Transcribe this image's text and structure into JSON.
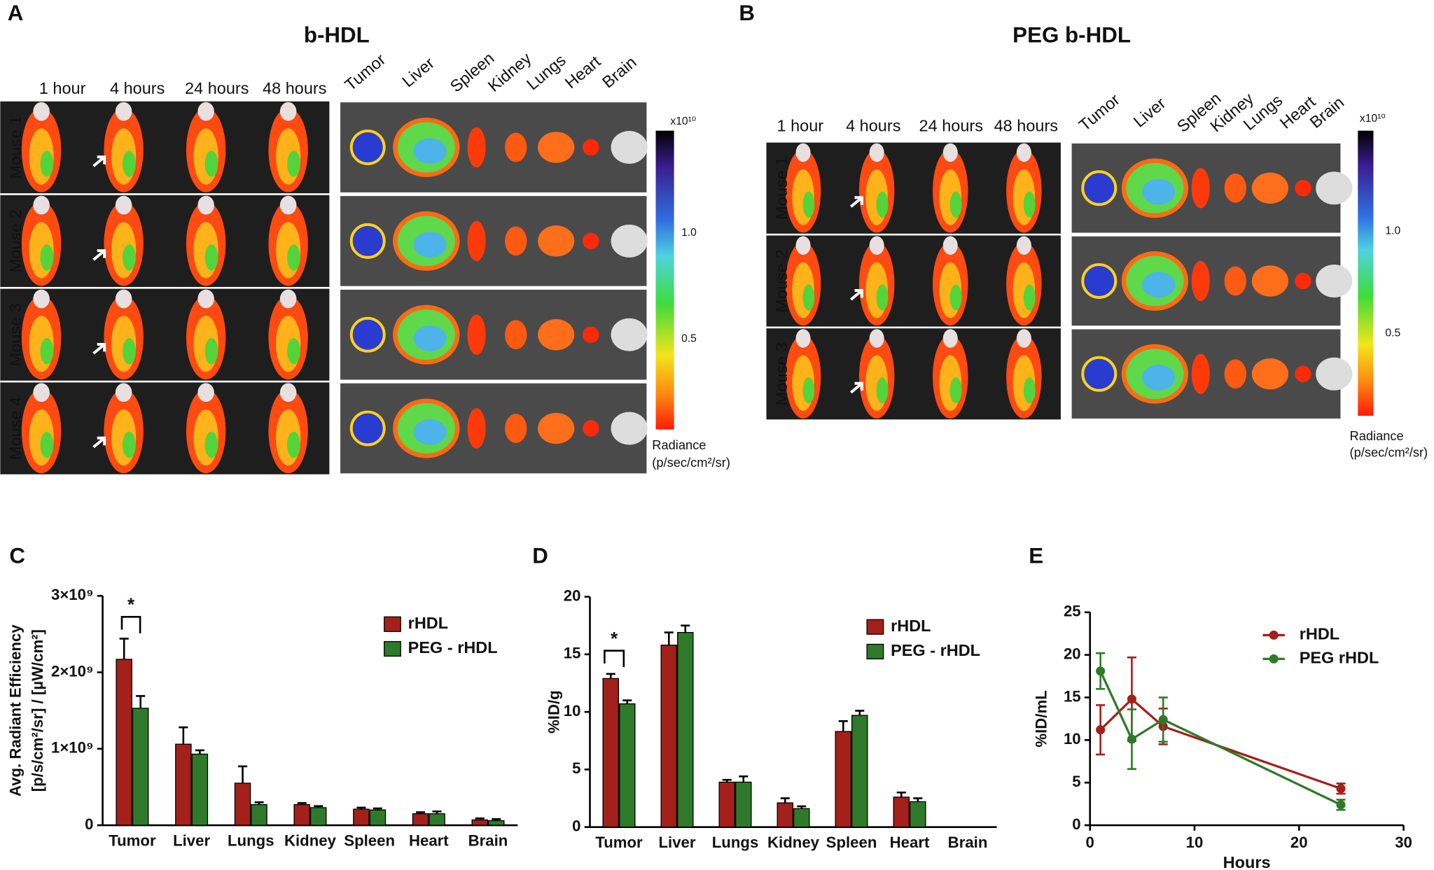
{
  "panels": [
    {
      "label": "A",
      "title": "b-HDL",
      "times": [
        "1 hour",
        "4 hours",
        "24 hours",
        "48 hours"
      ],
      "mice": [
        "Mouse 1",
        "Mouse 2",
        "Mouse 3",
        "Mouse 4"
      ],
      "organs": [
        "Tumor",
        "Liver",
        "Spleen",
        "Kidney",
        "Lungs",
        "Heart",
        "Brain"
      ],
      "colorbar": {
        "exponent": "x10¹⁰",
        "scale_labels": [
          "1.0",
          "0.5"
        ],
        "title": "Radiance",
        "unit": "(p/sec/cm²/sr)"
      }
    },
    {
      "label": "B",
      "title": "PEG b-HDL",
      "times": [
        "1 hour",
        "4 hours",
        "24 hours",
        "48 hours"
      ],
      "mice": [
        "Mouse 1",
        "Mouse 2",
        "Mouse 3"
      ],
      "organs": [
        "Tumor",
        "Liver",
        "Spleen",
        "Kidney",
        "Lungs",
        "Heart",
        "Brain"
      ],
      "colorbar": {
        "exponent": "x10¹⁰",
        "scale_labels": [
          "1.0",
          "0.5"
        ],
        "title": "Radiance",
        "unit": "(p/sec/cm²/sr)"
      }
    }
  ],
  "chart_data": [
    {
      "type": "bar",
      "panel_label": "C",
      "ylabel": [
        "Avg. Radiant Efficiency",
        "[p/s/cm²/sr] / [µW/cm²]"
      ],
      "categories": [
        "Tumor",
        "Liver",
        "Lungs",
        "Kidney",
        "Spleen",
        "Heart",
        "Brain"
      ],
      "series": [
        {
          "name": "rHDL",
          "color": "#a3201b",
          "values": [
            2170000000,
            1060000000,
            550000000,
            270000000,
            210000000,
            150000000,
            70000000
          ],
          "errors": [
            270000000,
            220000000,
            220000000,
            20000000,
            20000000,
            20000000,
            20000000
          ]
        },
        {
          "name": "PEG - rHDL",
          "color": "#2f7a2a",
          "values": [
            1530000000,
            930000000,
            270000000,
            230000000,
            200000000,
            150000000,
            60000000
          ],
          "errors": [
            160000000,
            50000000,
            30000000,
            20000000,
            20000000,
            30000000,
            20000000
          ]
        }
      ],
      "ylim": [
        0,
        3000000000
      ],
      "yticks": [
        0,
        {
          "value": 1000000000,
          "label": "1×10⁹"
        },
        {
          "value": 2000000000,
          "label": "2×10⁹"
        },
        {
          "value": 3000000000,
          "label": "3×10⁹"
        }
      ],
      "annotation": "*",
      "legend": "upper right"
    },
    {
      "type": "bar",
      "panel_label": "D",
      "ylabel": [
        "%ID/g"
      ],
      "categories": [
        "Tumor",
        "Liver",
        "Lungs",
        "Kidney",
        "Spleen",
        "Heart",
        "Brain"
      ],
      "series": [
        {
          "name": "rHDL",
          "color": "#a3201b",
          "values": [
            12.9,
            15.8,
            3.9,
            2.1,
            8.3,
            2.6,
            null
          ],
          "errors": [
            0.4,
            1.1,
            0.2,
            0.4,
            0.9,
            0.4,
            null
          ]
        },
        {
          "name": "PEG - rHDL",
          "color": "#2f7a2a",
          "values": [
            10.7,
            16.9,
            3.9,
            1.6,
            9.7,
            2.2,
            null
          ],
          "errors": [
            0.3,
            0.6,
            0.5,
            0.2,
            0.4,
            0.3,
            null
          ]
        }
      ],
      "ylim": [
        0,
        20
      ],
      "yticks": [
        0,
        5,
        10,
        15,
        20
      ],
      "annotation": "*",
      "legend": "upper right"
    },
    {
      "type": "line",
      "panel_label": "E",
      "ylabel": [
        "%ID/mL"
      ],
      "xlabel": "Hours",
      "x": [
        1,
        4,
        7,
        24
      ],
      "series": [
        {
          "name": "rHDL",
          "color": "#a3201b",
          "values": [
            11.2,
            14.8,
            11.6,
            4.3
          ],
          "errors": [
            2.9,
            4.9,
            2.1,
            0.6
          ]
        },
        {
          "name": "PEG rHDL",
          "color": "#2f7a2a",
          "values": [
            18.1,
            10.1,
            12.4,
            2.4
          ],
          "errors": [
            2.1,
            3.5,
            2.6,
            0.6
          ]
        }
      ],
      "xlim": [
        0,
        30
      ],
      "xticks": [
        0,
        10,
        20,
        30
      ],
      "ylim": [
        0,
        25
      ],
      "yticks": [
        0,
        5,
        10,
        15,
        20,
        25
      ],
      "legend": "upper right"
    }
  ]
}
